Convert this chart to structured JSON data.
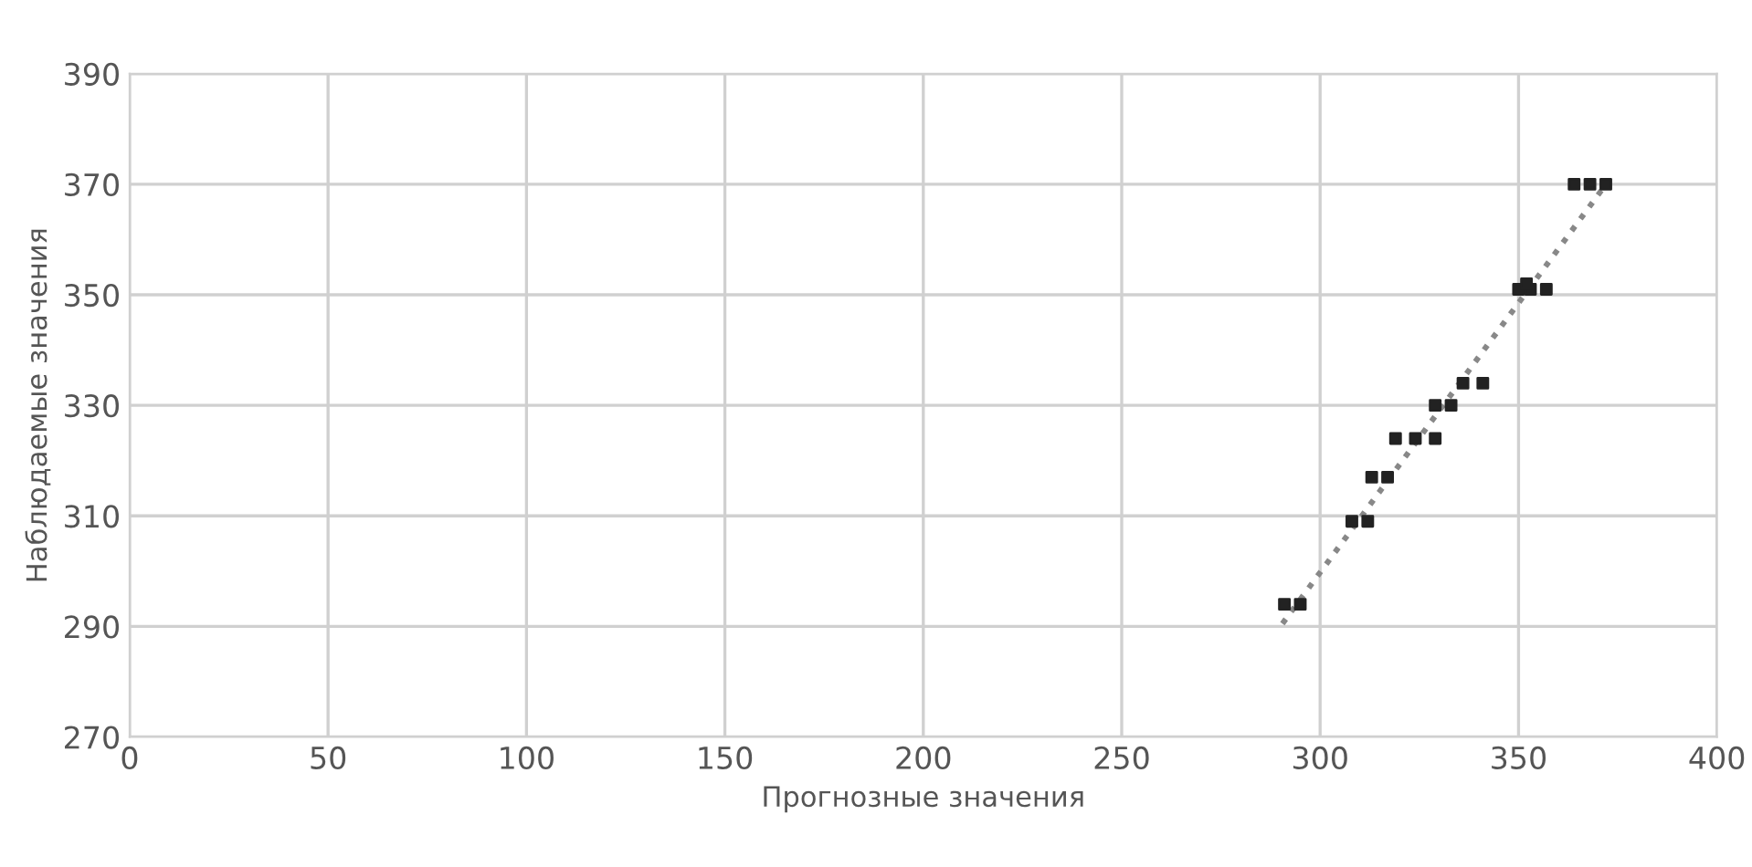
{
  "chart_data": {
    "type": "scatter",
    "xlabel": "Прогнозные значения",
    "ylabel": "Наблюдаемые значения",
    "xlim": [
      0,
      400
    ],
    "xticks": [
      0,
      50,
      100,
      150,
      200,
      250,
      300,
      350,
      400
    ],
    "ylim": [
      270,
      390
    ],
    "yticks": [
      270,
      290,
      310,
      330,
      350,
      370,
      390
    ],
    "grid": true,
    "marker": "square",
    "series": [
      {
        "color": "#222222",
        "x": [
          291,
          295,
          308,
          312,
          313,
          317,
          319,
          324,
          329,
          329,
          333,
          336,
          341,
          350,
          353,
          357,
          352,
          364,
          368,
          372
        ],
        "values": [
          294,
          294,
          309,
          309,
          317,
          317,
          324,
          324,
          324,
          330,
          330,
          334,
          334,
          351,
          351,
          351,
          352,
          370,
          370,
          370
        ]
      },
      {
        "type": "line",
        "line_style": "dotted",
        "marker": "none",
        "color": "#888888",
        "x": [
          290.5,
          371
        ],
        "values": [
          290.5,
          369
        ]
      }
    ]
  }
}
